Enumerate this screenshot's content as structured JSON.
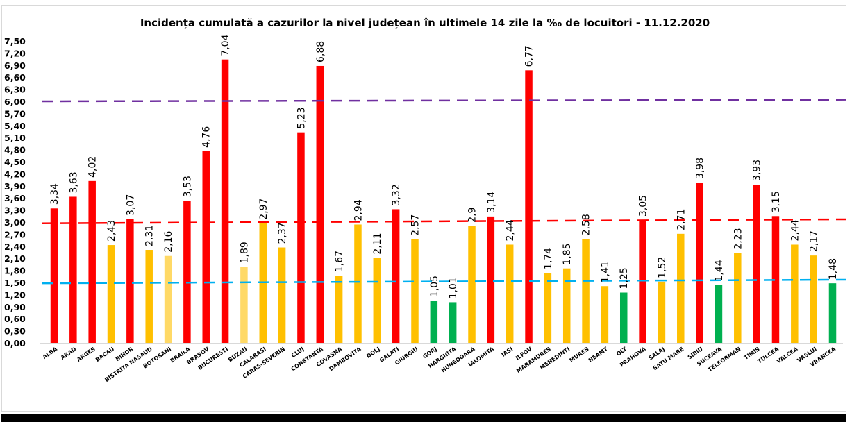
{
  "chart_data": {
    "type": "bar",
    "title": "Incidența cumulată a cazurilor la nivel județean în ultimele 14 zile la ‰ de locuitori - 11.12.2020",
    "xlabel": "",
    "ylabel": "",
    "ylim": [
      0,
      7.5
    ],
    "ytick_step": 0.3,
    "yticks": [
      "0,00",
      "0,30",
      "0,60",
      "0,90",
      "1,20",
      "1,50",
      "1,80",
      "2,10",
      "2,40",
      "2,70",
      "3,00",
      "3,30",
      "3,60",
      "3,90",
      "4,20",
      "4,50",
      "4,80",
      "5,10",
      "5,40",
      "5,70",
      "6,00",
      "6,30",
      "6,60",
      "6,90",
      "7,20",
      "7,50"
    ],
    "grid": false,
    "legend": "none",
    "categories": [
      "ALBA",
      "ARAD",
      "ARGES",
      "BACAU",
      "BIHOR",
      "BISTRITA NASAUD",
      "BOTOSANI",
      "BRAILA",
      "BRASOV",
      "BUCURESTI",
      "BUZAU",
      "CALARASI",
      "CARAS-SEVERIN",
      "CLUJ",
      "CONSTANTA",
      "COVASNA",
      "DAMBOVITA",
      "DOLJ",
      "GALATI",
      "GIURGIU",
      "GORJ",
      "HARGHITA",
      "HUNEDOARA",
      "IALOMITA",
      "IASI",
      "ILFOV",
      "MARAMURES",
      "MEHEDINTI",
      "MURES",
      "NEAMT",
      "OLT",
      "PRAHOVA",
      "SALAJ",
      "SATU MARE",
      "SIBIU",
      "SUCEAVA",
      "TELEORMAN",
      "TIMIS",
      "TULCEA",
      "VALCEA",
      "VASLUI",
      "VRANCEA"
    ],
    "values": [
      3.34,
      3.63,
      4.02,
      2.43,
      3.07,
      2.31,
      2.16,
      3.53,
      4.76,
      7.04,
      1.89,
      2.97,
      2.37,
      5.23,
      6.88,
      1.67,
      2.94,
      2.11,
      3.32,
      2.57,
      1.05,
      1.01,
      2.9,
      3.14,
      2.44,
      6.77,
      1.74,
      1.85,
      2.58,
      1.41,
      1.25,
      3.05,
      1.52,
      2.71,
      3.98,
      1.44,
      2.23,
      3.93,
      3.15,
      2.44,
      2.17,
      1.48
    ],
    "data_labels": [
      "3,34",
      "3,63",
      "4,02",
      "2,43",
      "3,07",
      "2,31",
      "2,16",
      "3,53",
      "4,76",
      "7,04",
      "1,89",
      "2,97",
      "2,37",
      "5,23",
      "6,88",
      "1,67",
      "2,94",
      "2,11",
      "3,32",
      "2,57",
      "1,05",
      "1,01",
      "2,9",
      "3,14",
      "2,44",
      "6,77",
      "1,74",
      "1,85",
      "2,58",
      "1,41",
      "1,25",
      "3,05",
      "1,52",
      "2,71",
      "3,98",
      "1,44",
      "2,23",
      "3,93",
      "3,15",
      "2,44",
      "2,17",
      "1,48"
    ],
    "bar_colors": [
      "red",
      "red",
      "red",
      "amber",
      "red",
      "amber",
      "light-amber",
      "red",
      "red",
      "red",
      "light-amber",
      "amber",
      "amber",
      "red",
      "red",
      "amber",
      "amber",
      "amber",
      "red",
      "amber",
      "green",
      "green",
      "amber",
      "red",
      "amber",
      "red",
      "amber",
      "amber",
      "amber",
      "amber",
      "green",
      "red",
      "amber",
      "amber",
      "red",
      "green",
      "amber",
      "red",
      "red",
      "amber",
      "amber",
      "green"
    ],
    "palette": {
      "red": "#ff0000",
      "amber": "#ffc000",
      "light-amber": "#ffd966",
      "green": "#00b050"
    },
    "reference_lines": [
      {
        "name": "threshold-6",
        "value": 6.0,
        "color": "#7030a0",
        "style": "dashed"
      },
      {
        "name": "threshold-3",
        "value": 3.0,
        "color": "#ff0000",
        "style": "dashed"
      },
      {
        "name": "threshold-1.5",
        "value": 1.5,
        "color": "#00b0f0",
        "style": "dashed"
      }
    ]
  }
}
